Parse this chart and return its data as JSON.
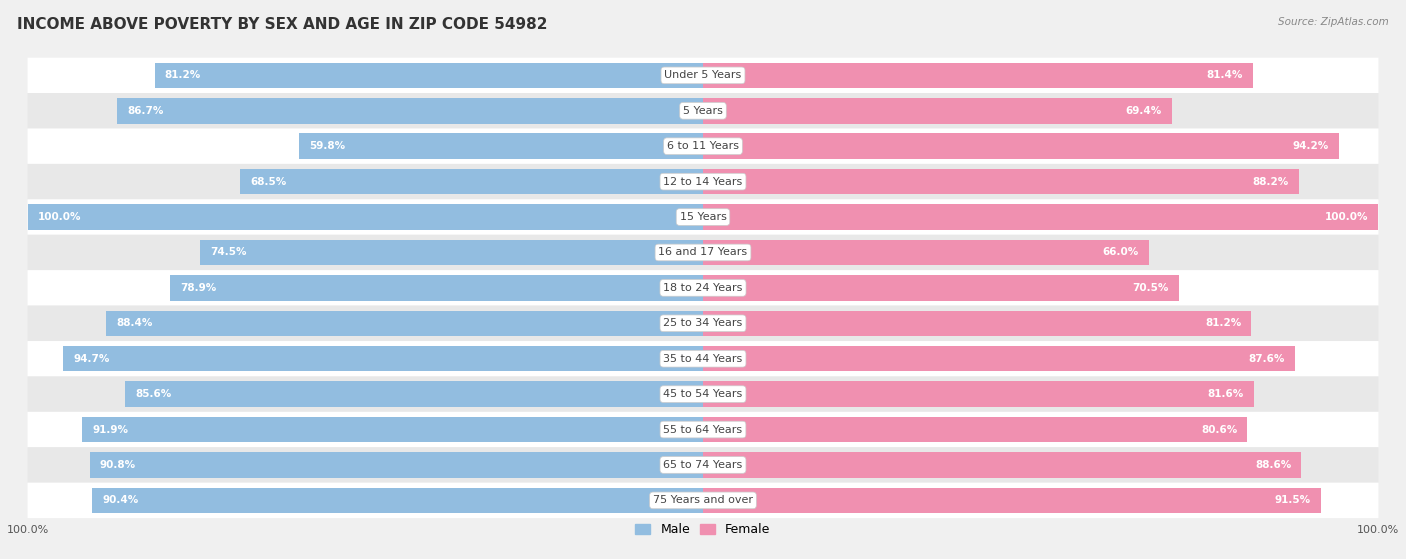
{
  "title": "INCOME ABOVE POVERTY BY SEX AND AGE IN ZIP CODE 54982",
  "source": "Source: ZipAtlas.com",
  "categories": [
    "Under 5 Years",
    "5 Years",
    "6 to 11 Years",
    "12 to 14 Years",
    "15 Years",
    "16 and 17 Years",
    "18 to 24 Years",
    "25 to 34 Years",
    "35 to 44 Years",
    "45 to 54 Years",
    "55 to 64 Years",
    "65 to 74 Years",
    "75 Years and over"
  ],
  "male_values": [
    81.2,
    86.7,
    59.8,
    68.5,
    100.0,
    74.5,
    78.9,
    88.4,
    94.7,
    85.6,
    91.9,
    90.8,
    90.4
  ],
  "female_values": [
    81.4,
    69.4,
    94.2,
    88.2,
    100.0,
    66.0,
    70.5,
    81.2,
    87.6,
    81.6,
    80.6,
    88.6,
    91.5
  ],
  "male_color": "#92bde0",
  "female_color": "#f090b0",
  "background_color": "#f0f0f0",
  "row_color_light": "#ffffff",
  "row_color_dark": "#e8e8e8",
  "title_fontsize": 11,
  "label_fontsize": 8,
  "value_fontsize": 7.5,
  "axis_label_fontsize": 8,
  "legend_fontsize": 9
}
